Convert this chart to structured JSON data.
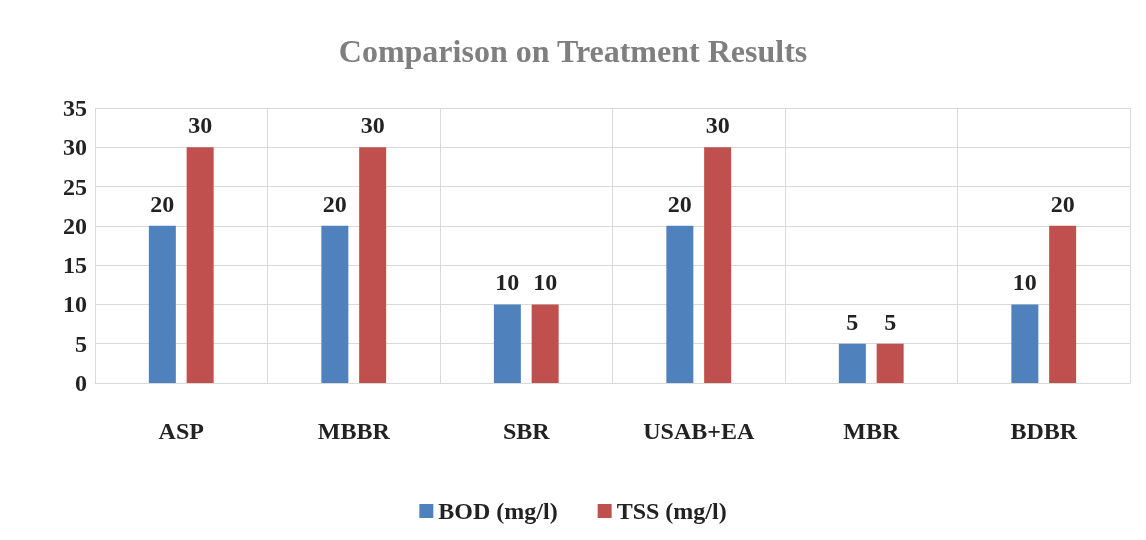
{
  "chart_data": {
    "type": "bar",
    "title": "Comparison on Treatment Results",
    "categories": [
      "ASP",
      "MBBR",
      "SBR",
      "USAB+EA",
      "MBR",
      "BDBR"
    ],
    "series": [
      {
        "name": "BOD (mg/l)",
        "color": "#4f81bd",
        "values": [
          20,
          20,
          10,
          20,
          5,
          10
        ]
      },
      {
        "name": "TSS (mg/l)",
        "color": "#c0504d",
        "values": [
          30,
          30,
          10,
          30,
          5,
          20
        ]
      }
    ],
    "ylim": [
      0,
      35
    ],
    "yticks": [
      0,
      5,
      10,
      15,
      20,
      25,
      30,
      35
    ],
    "grid": true,
    "legend": "bottom",
    "data_labels": true
  }
}
